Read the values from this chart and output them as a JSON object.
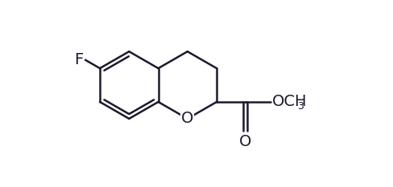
{
  "bg_color": "#ffffff",
  "line_color": "#1a1a2e",
  "line_width": 1.8,
  "font_size_atom": 14,
  "font_size_sub": 9,
  "figsize": [
    4.88,
    2.33
  ],
  "dpi": 100,
  "xlim": [
    0.0,
    10.0
  ],
  "ylim": [
    0.0,
    5.5
  ]
}
